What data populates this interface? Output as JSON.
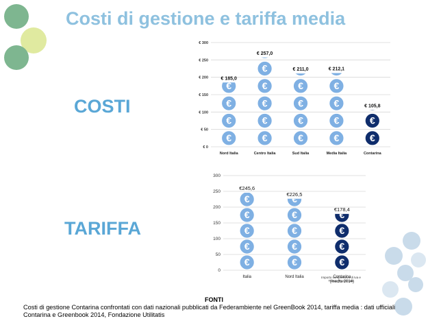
{
  "title": "Costi di gestione e tariffa media",
  "labels": {
    "costi": "COSTI",
    "tariffa": "TARIFFA"
  },
  "colors": {
    "title": "#8ec1df",
    "section": "#5aa7d6",
    "light_coin": "#7fb0e3",
    "dark_coin": "#0f2d6c",
    "deco_green": "#7eb690",
    "deco_yellow": "#e0eaa0",
    "deco_blue": "#c9dbea"
  },
  "chart_data": [
    {
      "type": "bar",
      "categories": [
        "Nord Italia",
        "Centro Italia",
        "Sud Italia",
        "Media Italia",
        "Contarina"
      ],
      "values": [
        185.0,
        257.0,
        211.0,
        212.1,
        105.8
      ],
      "data_labels": [
        "€ 185,0",
        "€ 257,0",
        "€ 211,0",
        "€ 212,1",
        "€ 105,8"
      ],
      "highlight": [
        "Contarina"
      ],
      "ylim": [
        0,
        300
      ],
      "y_ticks": [
        "€ 0",
        "€ 50",
        "€ 100",
        "€ 150",
        "€ 200",
        "€ 250",
        "€ 300"
      ],
      "grid": true
    },
    {
      "type": "bar",
      "categories": [
        "Italia",
        "Nord Italia",
        "Contarina\n(media 2014)"
      ],
      "values": [
        245.6,
        226.5,
        178.4
      ],
      "data_labels": [
        "€245,6",
        "€226,5",
        "€178,4"
      ],
      "highlight": [
        "Contarina\n(media 2014)"
      ],
      "ylim": [
        0,
        300
      ],
      "y_ticks": [
        "0",
        "50",
        "100",
        "150",
        "200",
        "250",
        "300"
      ],
      "grid": true,
      "annotation": "Importo comprensivo di Iva\ne Tributo Provinciale"
    }
  ],
  "footer": {
    "title": "FONTI",
    "text": "Costi di gestione Contarina confrontati con dati nazionali pubblicati da Federambiente nel GreenBook 2014, tariffa media : dati ufficiali Contarina e Greenbook 2014, Fondazione Utilitatis"
  }
}
